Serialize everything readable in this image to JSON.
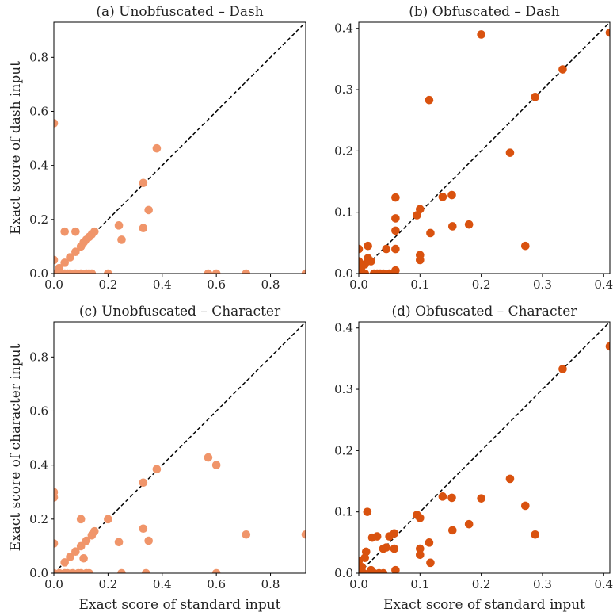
{
  "colors": {
    "light": "#F0956A",
    "dark": "#D9520F"
  },
  "x_axis_label": "Exact score of standard input",
  "chart_data": [
    {
      "type": "scatter",
      "title": "(a) Unobfuscated – Dash",
      "xlabel": "",
      "ylabel": "Exact score of dash input",
      "xlim": [
        0,
        0.93
      ],
      "ylim": [
        0,
        0.93
      ],
      "xticks": [
        "0.0",
        "0.2",
        "0.4",
        "0.6",
        "0.8"
      ],
      "xtick_values": [
        0,
        0.2,
        0.4,
        0.6,
        0.8
      ],
      "yticks": [
        "0.0",
        "0.2",
        "0.4",
        "0.6",
        "0.8"
      ],
      "ytick_values": [
        0,
        0.2,
        0.4,
        0.6,
        0.8
      ],
      "color": "light",
      "diagonal": true,
      "points": [
        [
          0,
          0.556
        ],
        [
          0,
          0.05
        ],
        [
          0,
          0
        ],
        [
          0.02,
          0
        ],
        [
          0.04,
          0
        ],
        [
          0.05,
          0
        ],
        [
          0.06,
          0
        ],
        [
          0.08,
          0
        ],
        [
          0.1,
          0
        ],
        [
          0.12,
          0
        ],
        [
          0.13,
          0
        ],
        [
          0.14,
          0
        ],
        [
          0.2,
          0
        ],
        [
          0.57,
          0
        ],
        [
          0.6,
          0
        ],
        [
          0.71,
          0
        ],
        [
          0.93,
          0
        ],
        [
          0.04,
          0.155
        ],
        [
          0.08,
          0.155
        ],
        [
          0.02,
          0.02
        ],
        [
          0.04,
          0.04
        ],
        [
          0.06,
          0.06
        ],
        [
          0.08,
          0.08
        ],
        [
          0.1,
          0.1
        ],
        [
          0.11,
          0.115
        ],
        [
          0.12,
          0.125
        ],
        [
          0.13,
          0.135
        ],
        [
          0.14,
          0.145
        ],
        [
          0.15,
          0.155
        ],
        [
          0.24,
          0.178
        ],
        [
          0.25,
          0.125
        ],
        [
          0.33,
          0.335
        ],
        [
          0.33,
          0.168
        ],
        [
          0.35,
          0.235
        ],
        [
          0.38,
          0.463
        ]
      ]
    },
    {
      "type": "scatter",
      "title": "(b) Obfuscated – Dash",
      "xlabel": "",
      "ylabel": "",
      "xlim": [
        0,
        0.41
      ],
      "ylim": [
        0,
        0.41
      ],
      "xticks": [
        "0.0",
        "0.1",
        "0.2",
        "0.3",
        "0.4"
      ],
      "xtick_values": [
        0,
        0.1,
        0.2,
        0.3,
        0.4
      ],
      "yticks": [
        "0.0",
        "0.1",
        "0.2",
        "0.3",
        "0.4"
      ],
      "ytick_values": [
        0,
        0.1,
        0.2,
        0.3,
        0.4
      ],
      "color": "dark",
      "diagonal": true,
      "points": [
        [
          0,
          0.04
        ],
        [
          0,
          0.02
        ],
        [
          0.004,
          0.01
        ],
        [
          0.006,
          0
        ],
        [
          0.01,
          0
        ],
        [
          0.01,
          0.015
        ],
        [
          0.015,
          0.025
        ],
        [
          0.015,
          0.045
        ],
        [
          0.02,
          0.02
        ],
        [
          0.025,
          0
        ],
        [
          0.03,
          0
        ],
        [
          0.035,
          0
        ],
        [
          0.04,
          0
        ],
        [
          0.045,
          0.04
        ],
        [
          0.05,
          0
        ],
        [
          0.055,
          0
        ],
        [
          0.06,
          0.124
        ],
        [
          0.06,
          0.09
        ],
        [
          0.06,
          0.07
        ],
        [
          0.06,
          0.04
        ],
        [
          0.06,
          0.005
        ],
        [
          0.095,
          0.095
        ],
        [
          0.1,
          0.105
        ],
        [
          0.1,
          0.03
        ],
        [
          0.1,
          0.022
        ],
        [
          0.115,
          0.283
        ],
        [
          0.117,
          0.066
        ],
        [
          0.137,
          0.125
        ],
        [
          0.152,
          0.128
        ],
        [
          0.153,
          0.077
        ],
        [
          0.18,
          0.08
        ],
        [
          0.2,
          0.39
        ],
        [
          0.247,
          0.197
        ],
        [
          0.272,
          0.045
        ],
        [
          0.288,
          0.288
        ],
        [
          0.333,
          0.333
        ],
        [
          0.41,
          0.393
        ]
      ]
    },
    {
      "type": "scatter",
      "title": "(c) Unobfuscated – Character",
      "xlabel": "Exact score of standard input",
      "ylabel": "Exact score of character input",
      "xlim": [
        0,
        0.93
      ],
      "ylim": [
        0,
        0.93
      ],
      "xticks": [
        "0.0",
        "0.2",
        "0.4",
        "0.6",
        "0.8"
      ],
      "xtick_values": [
        0,
        0.2,
        0.4,
        0.6,
        0.8
      ],
      "yticks": [
        "0.0",
        "0.2",
        "0.4",
        "0.6",
        "0.8"
      ],
      "ytick_values": [
        0,
        0.2,
        0.4,
        0.6,
        0.8
      ],
      "color": "light",
      "diagonal": true,
      "points": [
        [
          0,
          0.3
        ],
        [
          0,
          0.28
        ],
        [
          0,
          0.11
        ],
        [
          0,
          0
        ],
        [
          0.02,
          0
        ],
        [
          0.04,
          0
        ],
        [
          0.05,
          0
        ],
        [
          0.07,
          0
        ],
        [
          0.09,
          0
        ],
        [
          0.1,
          0
        ],
        [
          0.12,
          0
        ],
        [
          0.13,
          0
        ],
        [
          0.25,
          0
        ],
        [
          0.34,
          0
        ],
        [
          0.6,
          0
        ],
        [
          0.04,
          0.04
        ],
        [
          0.06,
          0.06
        ],
        [
          0.08,
          0.08
        ],
        [
          0.1,
          0.1
        ],
        [
          0.11,
          0.055
        ],
        [
          0.12,
          0.12
        ],
        [
          0.14,
          0.14
        ],
        [
          0.15,
          0.155
        ],
        [
          0.1,
          0.2
        ],
        [
          0.2,
          0.2
        ],
        [
          0.24,
          0.115
        ],
        [
          0.33,
          0.335
        ],
        [
          0.33,
          0.165
        ],
        [
          0.35,
          0.12
        ],
        [
          0.38,
          0.385
        ],
        [
          0.57,
          0.428
        ],
        [
          0.6,
          0.4
        ],
        [
          0.71,
          0.143
        ],
        [
          0.93,
          0.143
        ]
      ]
    },
    {
      "type": "scatter",
      "title": "(d) Obfuscated – Character",
      "xlabel": "Exact score of standard input",
      "ylabel": "",
      "xlim": [
        0,
        0.41
      ],
      "ylim": [
        0,
        0.41
      ],
      "xticks": [
        "0.0",
        "0.1",
        "0.2",
        "0.3",
        "0.4"
      ],
      "xtick_values": [
        0,
        0.1,
        0.2,
        0.3,
        0.4
      ],
      "yticks": [
        "0.0",
        "0.1",
        "0.2",
        "0.3",
        "0.4"
      ],
      "ytick_values": [
        0,
        0.1,
        0.2,
        0.3,
        0.4
      ],
      "color": "dark",
      "diagonal": true,
      "points": [
        [
          0,
          0.005
        ],
        [
          0,
          0.02
        ],
        [
          0.005,
          0.01
        ],
        [
          0.008,
          0
        ],
        [
          0.01,
          0.025
        ],
        [
          0.012,
          0.035
        ],
        [
          0.014,
          0.1
        ],
        [
          0.02,
          0.005
        ],
        [
          0.022,
          0.058
        ],
        [
          0.025,
          0
        ],
        [
          0.03,
          0.06
        ],
        [
          0.033,
          0
        ],
        [
          0.04,
          0
        ],
        [
          0.04,
          0.04
        ],
        [
          0.045,
          0.042
        ],
        [
          0.05,
          0.06
        ],
        [
          0.058,
          0.065
        ],
        [
          0.058,
          0.04
        ],
        [
          0.06,
          0.005
        ],
        [
          0.095,
          0.095
        ],
        [
          0.1,
          0.09
        ],
        [
          0.1,
          0.04
        ],
        [
          0.1,
          0.03
        ],
        [
          0.115,
          0.05
        ],
        [
          0.117,
          0.017
        ],
        [
          0.137,
          0.125
        ],
        [
          0.152,
          0.123
        ],
        [
          0.153,
          0.07
        ],
        [
          0.18,
          0.08
        ],
        [
          0.2,
          0.122
        ],
        [
          0.247,
          0.154
        ],
        [
          0.272,
          0.11
        ],
        [
          0.288,
          0.063
        ],
        [
          0.333,
          0.333
        ],
        [
          0.41,
          0.37
        ]
      ]
    }
  ]
}
